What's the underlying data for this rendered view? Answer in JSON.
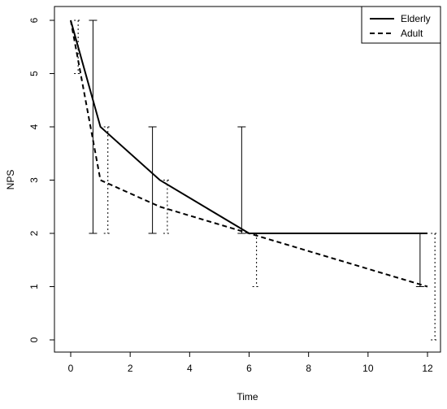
{
  "chart_data": {
    "type": "line",
    "xlabel": "Time",
    "ylabel": "NPS",
    "xlim": [
      0,
      12
    ],
    "ylim": [
      0,
      6
    ],
    "x_ticks": [
      "0",
      "2",
      "4",
      "6",
      "8",
      "10",
      "12"
    ],
    "y_ticks": [
      "0",
      "1",
      "2",
      "3",
      "4",
      "5",
      "6"
    ],
    "legend_position": "top-right",
    "grid": false,
    "series": [
      {
        "name": "Elderly",
        "line_style": "solid",
        "x": [
          0,
          1,
          3,
          6,
          12
        ],
        "y": [
          6,
          4,
          3,
          2,
          2
        ],
        "error_lower": [
          6,
          2,
          2,
          2,
          1
        ],
        "error_upper": [
          6,
          6,
          4,
          4,
          2
        ]
      },
      {
        "name": "Adult",
        "line_style": "dashed",
        "x": [
          0,
          1,
          3,
          6,
          12
        ],
        "y": [
          6,
          3,
          2.5,
          2,
          1
        ],
        "error_lower": [
          5,
          2,
          2,
          1,
          0
        ],
        "error_upper": [
          6,
          4,
          3,
          2,
          2
        ]
      }
    ]
  }
}
